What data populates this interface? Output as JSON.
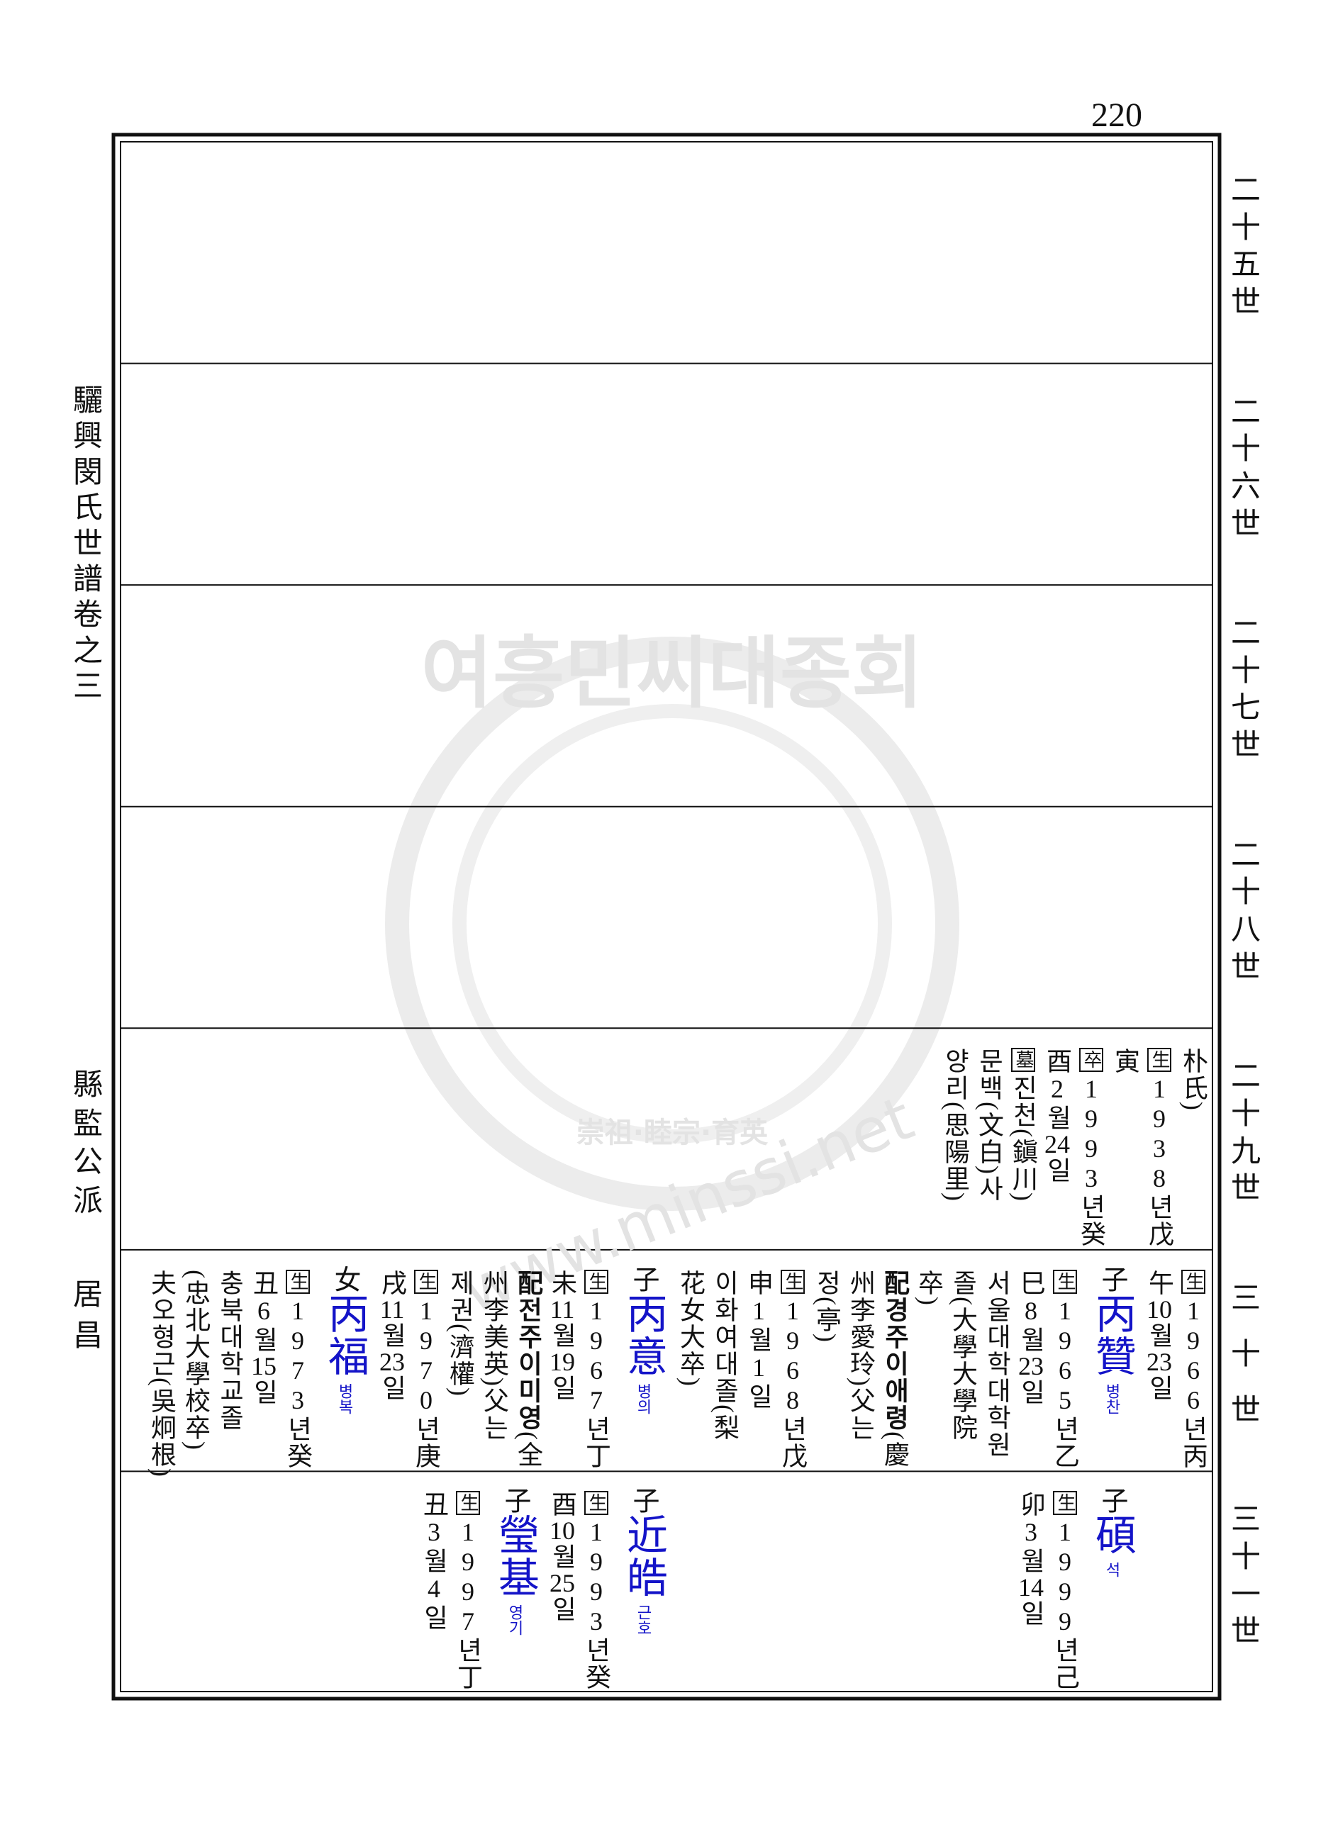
{
  "page_number": "220",
  "left_labels": [
    "驪興閔氏世譜卷之三",
    "縣監公派",
    "居昌"
  ],
  "generations": [
    "二十五世",
    "二十六世",
    "二十七世",
    "二十八世",
    "二十九世",
    "三十世",
    "三十一世"
  ],
  "watermark": {
    "title": "여흥민씨대종회",
    "motto": "崇祖·睦宗·育英",
    "url": "www.minssi.net"
  },
  "cells": [
    {
      "entries": []
    },
    {
      "entries": []
    },
    {
      "entries": []
    },
    {
      "entries": []
    },
    {
      "entries": [
        {
          "lines": [
            "朴氏)",
            {
              "tag": "生",
              "text": "1938년戊"
            },
            "寅",
            {
              "tag": "卒",
              "text": "1993년癸"
            },
            "酉2월24일",
            {
              "tag": "墓",
              "text": "진천(鎭川)"
            },
            "문백(文白)사",
            "양리(思陽里)"
          ]
        }
      ]
    },
    {
      "entries": [
        {
          "lines": [
            {
              "tag": "生",
              "text": "1966년丙"
            },
            "午10월23일"
          ]
        },
        {
          "relation": "子",
          "name": "丙贊",
          "reading": "병찬",
          "lines": [
            {
              "tag": "生",
              "text": "1965년乙"
            },
            "巳8월23일",
            "서울대학대학원",
            "졸(大學大學院",
            "卒)",
            {
              "rel": "配",
              "name": "경주이애령",
              "text": "(慶"
            },
            "州李愛玲)父는",
            "정(亭)",
            {
              "tag": "生",
              "text": "1968년戊"
            },
            "申1월1일",
            "이화여대졸(梨",
            "花女大卒)"
          ]
        },
        {
          "relation": "子",
          "name": "丙意",
          "reading": "병의",
          "lines": [
            {
              "tag": "生",
              "text": "1967년丁"
            },
            "未11월19일",
            {
              "rel": "配",
              "name": "전주이미영",
              "text": "(全"
            },
            "州李美英)父는",
            "제권(濟權)",
            {
              "tag": "生",
              "text": "1970년庚"
            },
            "戌11월23일"
          ]
        },
        {
          "relation": "女",
          "name": "丙福",
          "reading": "병복",
          "lines": [
            {
              "tag": "生",
              "text": "1973년癸"
            },
            "丑6월15일",
            "충북대학교졸",
            "(忠北大學校卒)",
            "夫오형근(吳炯根)"
          ]
        }
      ]
    },
    {
      "entries": [
        {
          "relation": "子",
          "name": "碩",
          "reading": "석",
          "lines": [
            {
              "tag": "生",
              "text": "1999년己"
            },
            "卯3월14일"
          ]
        },
        {
          "relation": "子",
          "name": "近皓",
          "reading": "근호",
          "lines": [
            {
              "tag": "生",
              "text": "1993년癸"
            },
            "酉10월25일"
          ]
        },
        {
          "relation": "子",
          "name": "瑩基",
          "reading": "영기",
          "lines": [
            {
              "tag": "生",
              "text": "1997년丁"
            },
            "丑3월4일"
          ]
        }
      ]
    }
  ]
}
